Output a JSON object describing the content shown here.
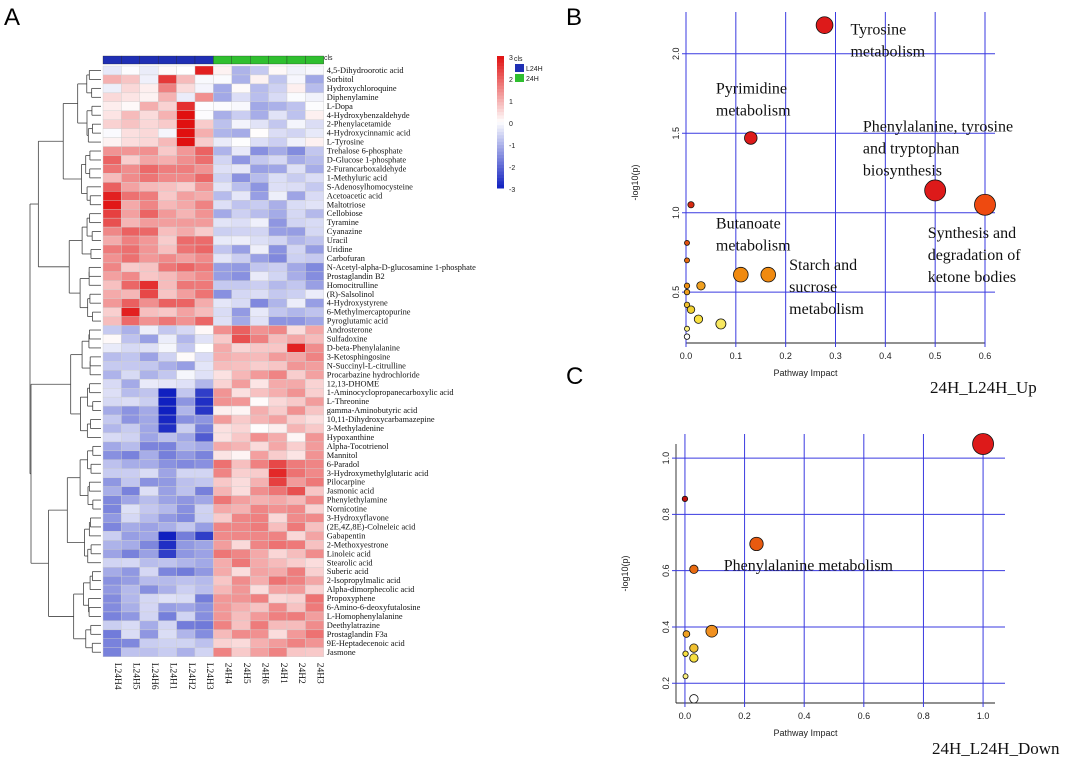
{
  "panels": {
    "a": "A",
    "b": "B",
    "c": "C"
  },
  "heatmap": {
    "cls_label": "cls",
    "samples": [
      "L24H4",
      "L24H5",
      "L24H6",
      "L24H1",
      "L24H2",
      "L24H3",
      "24H4",
      "24H5",
      "24H6",
      "24H1",
      "24H2",
      "24H3"
    ],
    "groups": [
      {
        "name": "L24H",
        "color": "#1f2fb4"
      },
      {
        "name": "24H",
        "color": "#2fbf2f"
      }
    ],
    "group_of_sample": [
      0,
      0,
      0,
      0,
      0,
      0,
      1,
      1,
      1,
      1,
      1,
      1
    ],
    "scale": {
      "min": -3,
      "max": 3,
      "ticks": [
        "3",
        "2",
        "1",
        "0",
        "-1",
        "-2",
        "-3"
      ],
      "low_color": "#1020c0",
      "mid_color": "#ffffff",
      "high_color": "#e01010"
    },
    "metabolites": [
      "4,5-Dihydroorotic acid",
      "Sorbitol",
      "Hydroxychloroquine",
      "Diphenylamine",
      "L-Dopa",
      "4-Hydroxybenzaldehyde",
      "2-Phenylacetamide",
      "4-Hydroxycinnamic acid",
      "L-Tyrosine",
      "Trehalose 6-phosphate",
      "D-Glucose 1-phosphate",
      "2-Furancarboxaldehyde",
      "1-Methyluric acid",
      "S-Adenosylhomocysteine",
      "Acetoacetic acid",
      "Maltotriose",
      "Cellobiose",
      "Tyramine",
      "Cyanazine",
      "Uracil",
      "Uridine",
      "Carbofuran",
      "N-Acetyl-alpha-D-glucosamine 1-phosphate",
      "Prostaglandin B2",
      "Homocitrulline",
      "(R)-Salsolinol",
      "4-Hydroxystyrene",
      "6-Methylmercaptopurine",
      "Pyroglutamic acid",
      "Androsterone",
      "Sulfadoxine",
      "D-beta-Phenylalanine",
      "3-Ketosphingosine",
      "N-Succinyl-L-citrulline",
      "Procarbazine hydrochloride",
      "12,13-DHOME",
      "1-Aminocyclopropanecarboxylic acid",
      "L-Threonine",
      "gamma-Aminobutyric acid",
      "10,11-Dihydroxycarbamazepine",
      "3-Methyladenine",
      "Hypoxanthine",
      "Alpha-Tocotrienol",
      "Mannitol",
      "6-Paradol",
      "3-Hydroxymethylglutaric acid",
      "Pilocarpine",
      "Jasmonic acid",
      "Phenylethylamine",
      "Nornicotine",
      "3-Hydroxyflavone",
      "(2E,4Z,8E)-Colneleic acid",
      "Gabapentin",
      "2-Methoxyestrone",
      "Linoleic acid",
      "Stearolic acid",
      "Suberic acid",
      "2-Isopropylmalic acid",
      "Alpha-dimorphecolic acid",
      "Propoxyphene",
      "6-Amino-6-deoxyfutalosine",
      "L-Homophenylalanine",
      "Deethylatrazine",
      "Prostaglandin F3a",
      "9E-Heptadecenoic acid",
      "Jasmone"
    ]
  },
  "chart_data": [
    {
      "type": "heatmap",
      "title": "",
      "rows": "heatmap.metabolites",
      "columns": "heatmap.samples",
      "value_range": [
        -3,
        3
      ],
      "dominant_cells": [
        {
          "row": "4,5-Dihydroorotic acid",
          "col": "L24H3",
          "value": 2.8
        },
        {
          "row": "Sorbitol",
          "col": "L24H1",
          "value": 2.5
        },
        {
          "row": "4-Hydroxybenzaldehyde",
          "col": "L24H2",
          "value": 3.0
        },
        {
          "row": "Acetoacetic acid",
          "col": "L24H4",
          "value": 2.8
        },
        {
          "row": "Homocitrulline",
          "col": "L24H6",
          "value": 2.6
        },
        {
          "row": "6-Methylmercaptopurine",
          "col": "L24H5",
          "value": 2.8
        },
        {
          "row": "Sulfadoxine",
          "col": "24H5",
          "value": 2.2
        },
        {
          "row": "D-beta-Phenylalanine",
          "col": "24H2",
          "value": 2.8
        },
        {
          "row": "3-Hydroxymethylglutaric acid",
          "col": "24H1",
          "value": 2.7
        },
        {
          "row": "Gabapentin",
          "col": "L24H1",
          "value": -3.0
        }
      ]
    },
    {
      "type": "scatter",
      "title": "24H_L24H_Up",
      "xlabel": "Pathway Impact",
      "ylabel": "-log10(p)",
      "xlim": [
        0,
        0.6
      ],
      "ylim": [
        0.18,
        2.2
      ],
      "xticks": [
        "0.0",
        "0.1",
        "0.2",
        "0.3",
        "0.4",
        "0.5",
        "0.6"
      ],
      "xtick_values": [
        0,
        0.1,
        0.2,
        0.3,
        0.4,
        0.5,
        0.6
      ],
      "yticks": [
        "0.5",
        "1.0",
        "1.5",
        "2.0"
      ],
      "ytick_values": [
        0.5,
        1.0,
        1.5,
        2.0
      ],
      "grid": true,
      "points": [
        {
          "x": 0.278,
          "y": 2.18,
          "size": 4,
          "color": "#dd1a1a",
          "label": "Tyrosine metabolism"
        },
        {
          "x": 0.13,
          "y": 1.47,
          "size": 3,
          "color": "#dd1a1a",
          "label": "Pyrimidine metabolism"
        },
        {
          "x": 0.5,
          "y": 1.14,
          "size": 5,
          "color": "#dd1a1a",
          "label": "Phenylalanine, tyrosine and tryptophan biosynthesis"
        },
        {
          "x": 0.6,
          "y": 1.05,
          "size": 5,
          "color": "#ee4a10",
          "label": "Synthesis and degradation of ketone bodies"
        },
        {
          "x": 0.11,
          "y": 0.61,
          "size": 3.5,
          "color": "#f08a10",
          "label": "Butanoate metabolism"
        },
        {
          "x": 0.165,
          "y": 0.61,
          "size": 3.5,
          "color": "#f08a10",
          "label": "Starch and sucrose metabolism"
        },
        {
          "x": 0.01,
          "y": 1.05,
          "size": 1.5,
          "color": "#d82a10",
          "label": ""
        },
        {
          "x": 0.002,
          "y": 0.81,
          "size": 1.2,
          "color": "#e05010",
          "label": ""
        },
        {
          "x": 0.002,
          "y": 0.7,
          "size": 1.2,
          "color": "#e86a10",
          "label": ""
        },
        {
          "x": 0.002,
          "y": 0.54,
          "size": 1.3,
          "color": "#f09010",
          "label": ""
        },
        {
          "x": 0.002,
          "y": 0.5,
          "size": 1.3,
          "color": "#f0a020",
          "label": ""
        },
        {
          "x": 0.03,
          "y": 0.54,
          "size": 2,
          "color": "#f0a020",
          "label": ""
        },
        {
          "x": 0.002,
          "y": 0.42,
          "size": 1.3,
          "color": "#f0c030",
          "label": ""
        },
        {
          "x": 0.01,
          "y": 0.39,
          "size": 1.8,
          "color": "#f0d030",
          "label": ""
        },
        {
          "x": 0.025,
          "y": 0.33,
          "size": 2,
          "color": "#f8e040",
          "label": ""
        },
        {
          "x": 0.07,
          "y": 0.3,
          "size": 2.4,
          "color": "#f8e860",
          "label": ""
        },
        {
          "x": 0.002,
          "y": 0.27,
          "size": 1.2,
          "color": "#fbf080",
          "label": ""
        },
        {
          "x": 0.002,
          "y": 0.22,
          "size": 1.3,
          "color": "#ffffff",
          "label": ""
        }
      ],
      "annotations": [
        {
          "lines": [
            "Tyrosine",
            "metabolism"
          ],
          "x": 0.33,
          "y": 2.12
        },
        {
          "lines": [
            "Pyrimidine",
            "metabolism"
          ],
          "x": 0.06,
          "y": 1.75
        },
        {
          "lines": [
            "Phenylalanine, tyrosine",
            "and tryptophan",
            "biosynthesis"
          ],
          "x": 0.355,
          "y": 1.51
        },
        {
          "lines": [
            "Butanoate",
            "metabolism"
          ],
          "x": 0.06,
          "y": 0.9
        },
        {
          "lines": [
            "Starch and",
            "sucrose",
            "metabolism"
          ],
          "x": 0.207,
          "y": 0.64
        },
        {
          "lines": [
            "Synthesis and",
            "degradation of",
            "ketone bodies"
          ],
          "x": 0.485,
          "y": 0.84
        }
      ]
    },
    {
      "type": "scatter",
      "title": "24H_L24H_Down",
      "xlabel": "Pathway Impact",
      "ylabel": "-log10(p)",
      "xlim": [
        -0.03,
        1.04
      ],
      "ylim": [
        0.13,
        1.05
      ],
      "xticks": [
        "0.0",
        "0.2",
        "0.4",
        "0.6",
        "0.8",
        "1.0"
      ],
      "xtick_values": [
        0,
        0.2,
        0.4,
        0.6,
        0.8,
        1.0
      ],
      "yticks": [
        "0.2",
        "0.4",
        "0.6",
        "0.8",
        "1.0"
      ],
      "ytick_values": [
        0.2,
        0.4,
        0.6,
        0.8,
        1.0
      ],
      "grid": true,
      "points": [
        {
          "x": 1.0,
          "y": 1.05,
          "size": 5,
          "color": "#dd1a1a",
          "label": ""
        },
        {
          "x": 0.0,
          "y": 0.855,
          "size": 1.3,
          "color": "#c01010",
          "label": ""
        },
        {
          "x": 0.24,
          "y": 0.695,
          "size": 3.2,
          "color": "#e85a10",
          "label": "Phenylalanine metabolism"
        },
        {
          "x": 0.03,
          "y": 0.605,
          "size": 2,
          "color": "#e86a10",
          "label": ""
        },
        {
          "x": 0.09,
          "y": 0.385,
          "size": 2.8,
          "color": "#f09020",
          "label": ""
        },
        {
          "x": 0.005,
          "y": 0.375,
          "size": 1.6,
          "color": "#f0a020",
          "label": ""
        },
        {
          "x": 0.03,
          "y": 0.325,
          "size": 2,
          "color": "#f0c030",
          "label": ""
        },
        {
          "x": 0.002,
          "y": 0.305,
          "size": 1.3,
          "color": "#f8e040",
          "label": ""
        },
        {
          "x": 0.03,
          "y": 0.29,
          "size": 2,
          "color": "#f8e040",
          "label": ""
        },
        {
          "x": 0.002,
          "y": 0.225,
          "size": 1.2,
          "color": "#fbf080",
          "label": ""
        },
        {
          "x": 0.03,
          "y": 0.145,
          "size": 2,
          "color": "#ffffff",
          "label": ""
        }
      ],
      "annotations": [
        {
          "lines": [
            "Phenylalanine metabolism"
          ],
          "x": 0.13,
          "y": 0.6
        }
      ]
    }
  ]
}
